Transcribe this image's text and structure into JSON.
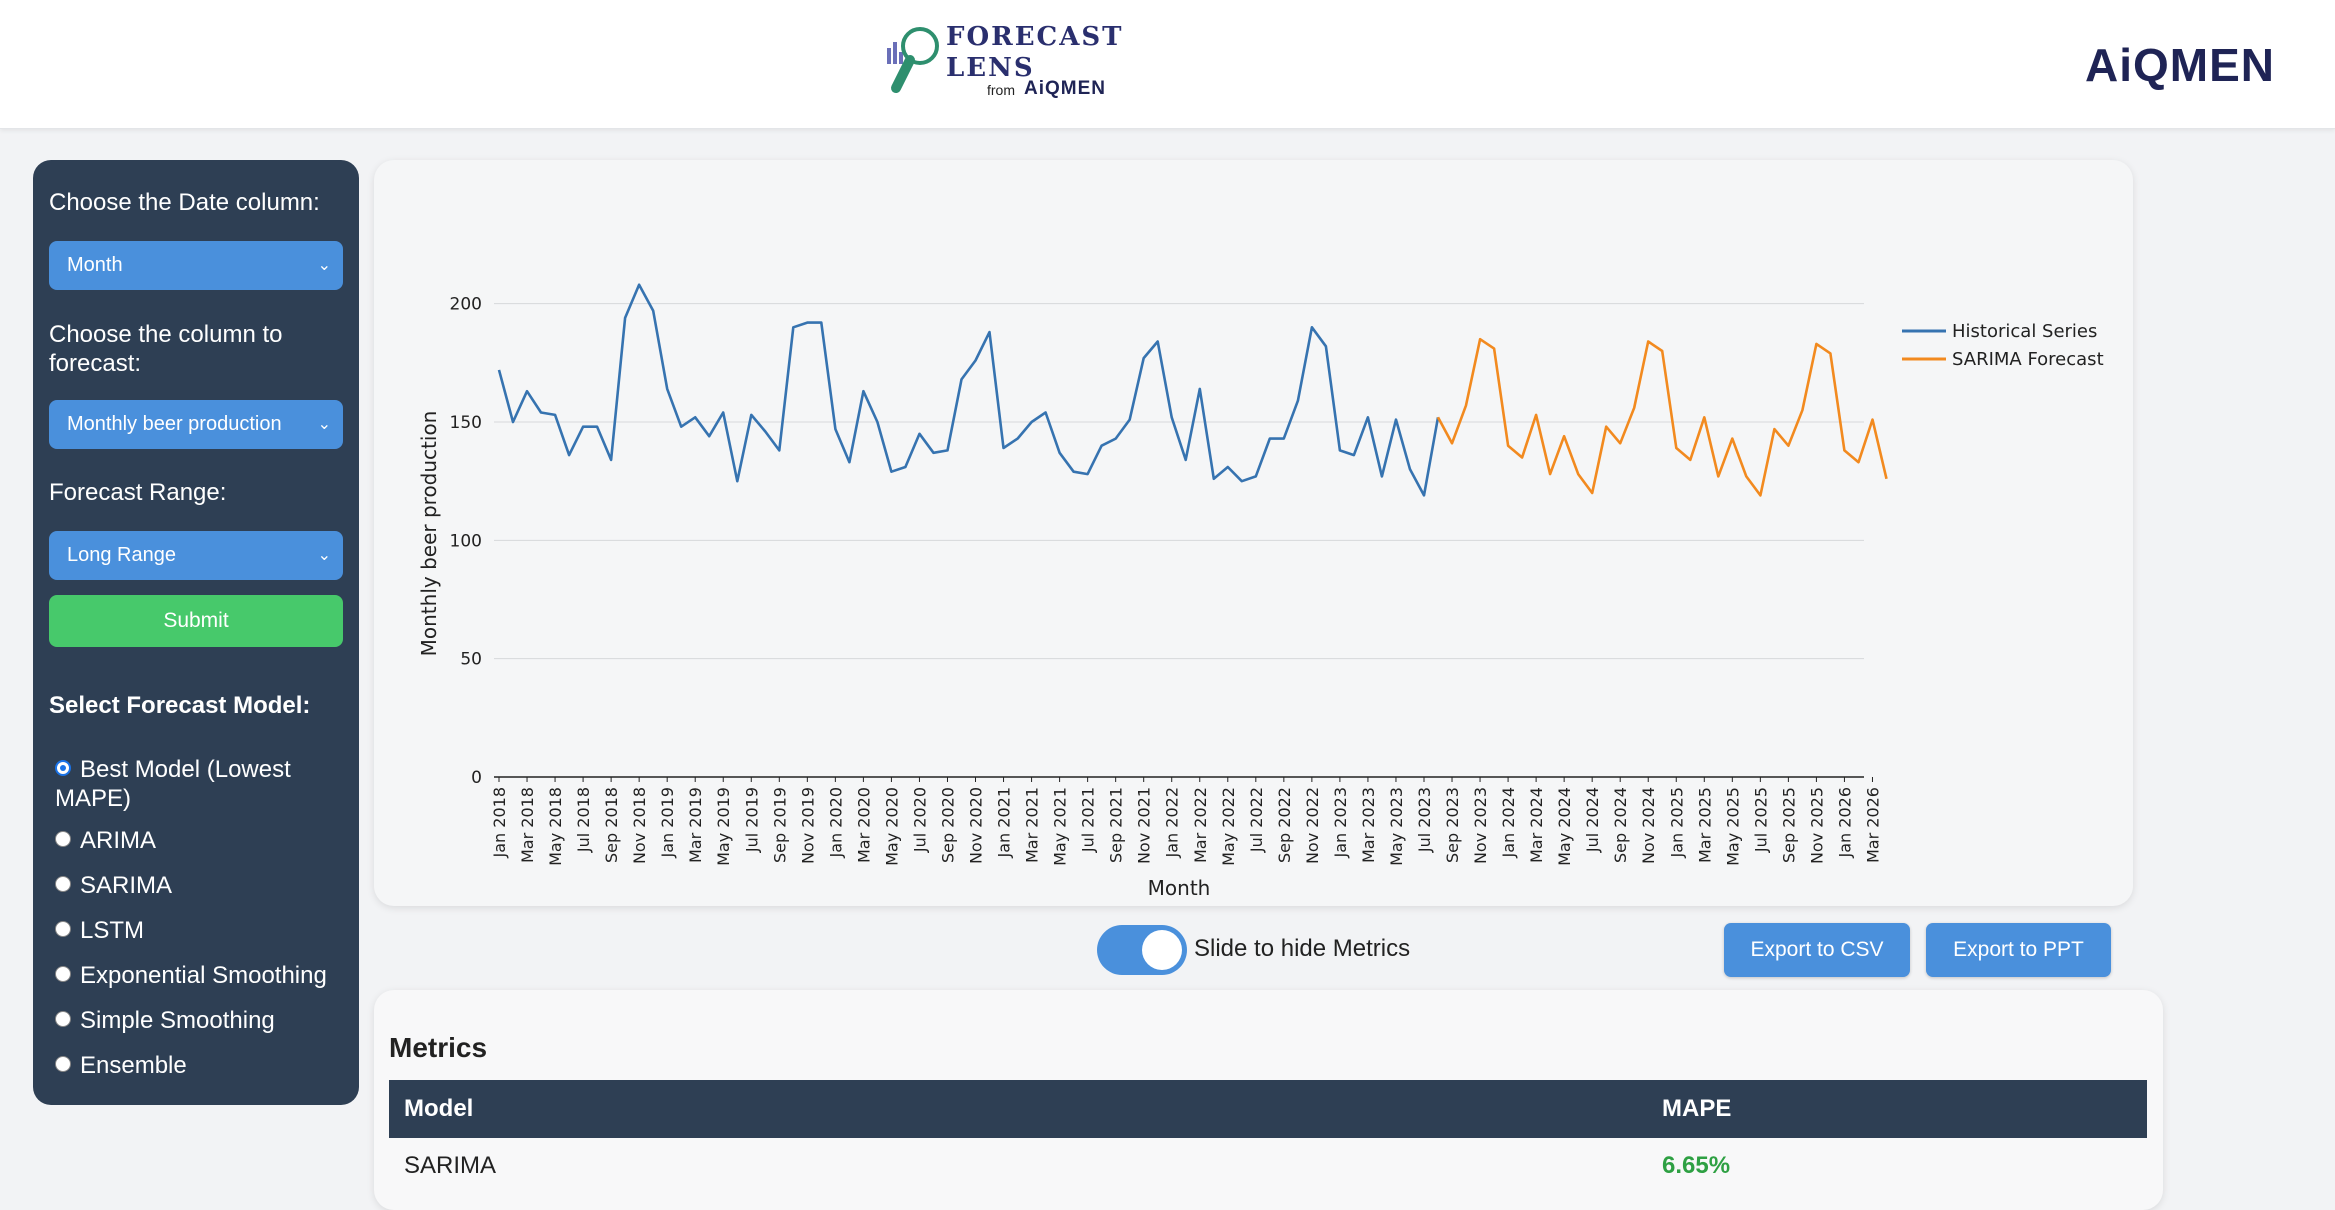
{
  "header": {
    "app_title_line1": "FORECAST",
    "app_title_line2": "LENS",
    "from_text": "from",
    "from_brand": "AiQMEN",
    "brand_right": "AiQMEN"
  },
  "sidebar": {
    "date_label": "Choose the Date column:",
    "date_value": "Month",
    "forecast_col_label": "Choose the column to forecast:",
    "forecast_col_value": "Monthly beer production",
    "range_label": "Forecast Range:",
    "range_value": "Long Range",
    "submit_label": "Submit",
    "model_title": "Select Forecast Model:",
    "models": [
      {
        "label": "Best Model (Lowest MAPE)",
        "checked": true
      },
      {
        "label": "ARIMA",
        "checked": false
      },
      {
        "label": "SARIMA",
        "checked": false
      },
      {
        "label": "LSTM",
        "checked": false
      },
      {
        "label": "Exponential Smoothing",
        "checked": false
      },
      {
        "label": "Simple Smoothing",
        "checked": false
      },
      {
        "label": "Ensemble",
        "checked": false
      }
    ]
  },
  "controls": {
    "toggle_label": "Slide to hide Metrics",
    "export_csv": "Export to CSV",
    "export_ppt": "Export to PPT"
  },
  "metrics": {
    "title": "Metrics",
    "col_model": "Model",
    "col_mape": "MAPE",
    "rows": [
      {
        "model": "SARIMA",
        "mape": "6.65%"
      }
    ]
  },
  "colors": {
    "historical": "#3673b0",
    "forecast": "#f28a1f"
  },
  "chart_data": {
    "type": "line",
    "xlabel": "Month",
    "ylabel": "Monthly beer production",
    "ylim": [
      0,
      210
    ],
    "yticks": [
      0,
      50,
      100,
      150,
      200
    ],
    "xticks": [
      "Jan 2018",
      "Mar 2018",
      "May 2018",
      "Jul 2018",
      "Sep 2018",
      "Nov 2018",
      "Jan 2019",
      "Mar 2019",
      "May 2019",
      "Jul 2019",
      "Sep 2019",
      "Nov 2019",
      "Jan 2020",
      "Mar 2020",
      "May 2020",
      "Jul 2020",
      "Sep 2020",
      "Nov 2020",
      "Jan 2021",
      "Mar 2021",
      "May 2021",
      "Jul 2021",
      "Sep 2021",
      "Nov 2021",
      "Jan 2022",
      "Mar 2022",
      "May 2022",
      "Jul 2022",
      "Sep 2022",
      "Nov 2022",
      "Jan 2023",
      "Mar 2023",
      "May 2023",
      "Jul 2023",
      "Sep 2023",
      "Nov 2023",
      "Jan 2024",
      "Mar 2024",
      "May 2024",
      "Jul 2024",
      "Sep 2024",
      "Nov 2024",
      "Jan 2025",
      "Mar 2025",
      "May 2025",
      "Jul 2025",
      "Sep 2025",
      "Nov 2025",
      "Jan 2026",
      "Mar 2026"
    ],
    "grid": true,
    "legend": "top-right",
    "series": [
      {
        "name": "Historical Series",
        "start_month_index": 0,
        "values": [
          172,
          150,
          163,
          154,
          153,
          136,
          148,
          148,
          134,
          194,
          208,
          197,
          164,
          148,
          152,
          144,
          154,
          125,
          153,
          146,
          138,
          190,
          192,
          192,
          147,
          133,
          163,
          150,
          129,
          131,
          145,
          137,
          138,
          168,
          176,
          188,
          139,
          143,
          150,
          154,
          137,
          129,
          128,
          140,
          143,
          151,
          177,
          184,
          152,
          134,
          164,
          126,
          131,
          125,
          127,
          143,
          143,
          159,
          190,
          182,
          138,
          136,
          152,
          127,
          151,
          130,
          119,
          152
        ]
      },
      {
        "name": "SARIMA Forecast",
        "start_month_index": 67,
        "values": [
          152,
          141,
          157,
          185,
          181,
          140,
          135,
          153,
          128,
          144,
          128,
          120,
          148,
          141,
          156,
          184,
          180,
          139,
          134,
          152,
          127,
          143,
          127,
          119,
          147,
          140,
          155,
          183,
          179,
          138,
          133,
          151,
          126
        ]
      }
    ]
  }
}
